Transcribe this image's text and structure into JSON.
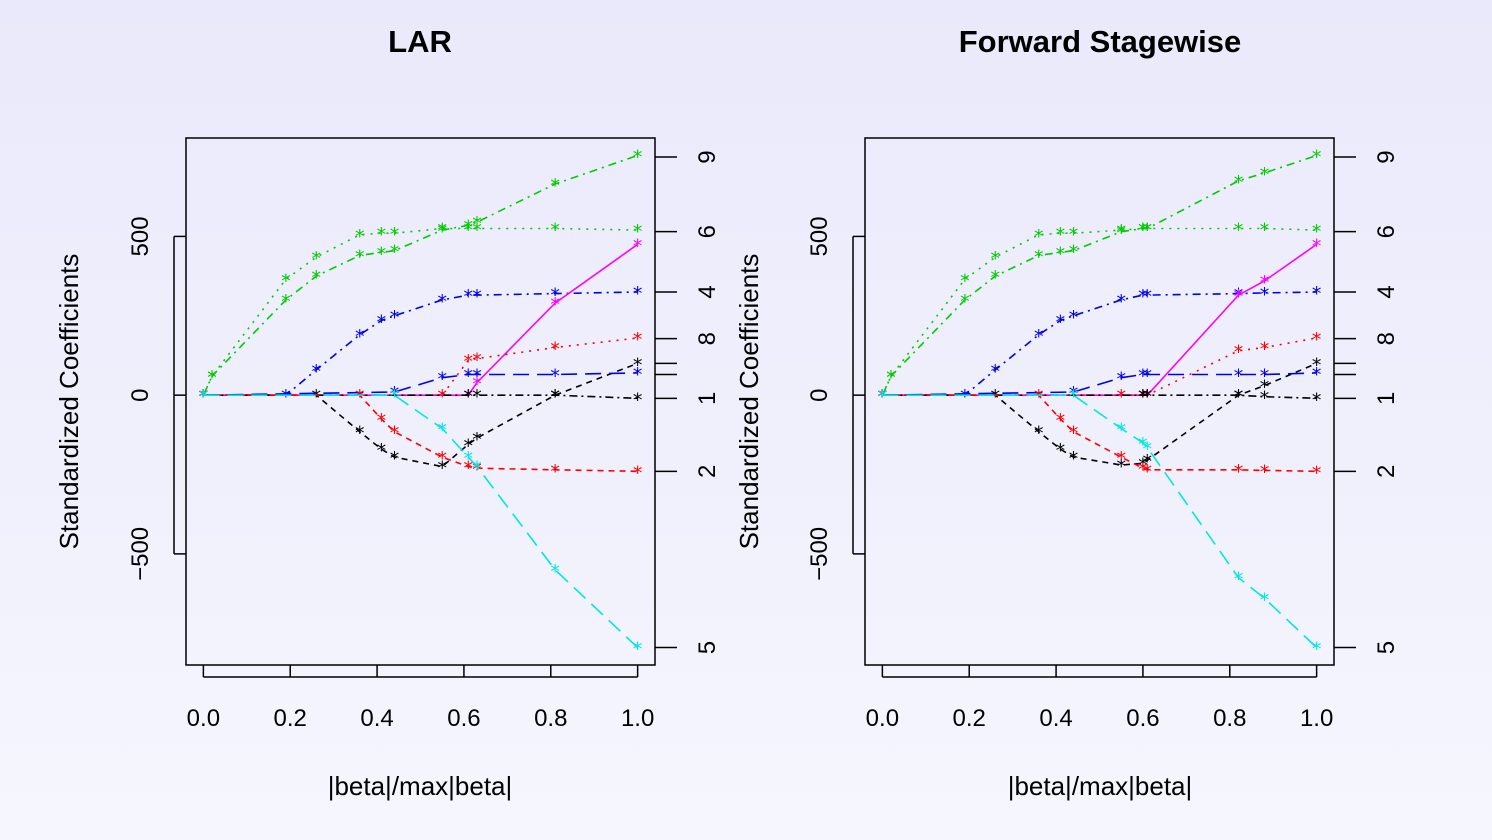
{
  "chart_data": [
    {
      "type": "line",
      "title": "LAR",
      "xlabel": "|beta|/max|beta|",
      "ylabel": "Standardized Coefficients",
      "xlim": [
        -0.04,
        1.04
      ],
      "ylim": [
        -850,
        810
      ],
      "x_ticks": [
        0.0,
        0.2,
        0.4,
        0.6,
        0.8,
        1.0
      ],
      "x_tick_labels": [
        "0.0",
        "0.2",
        "0.4",
        "0.6",
        "0.8",
        "1.0"
      ],
      "y_ticks": [
        -500,
        0,
        500
      ],
      "y_tick_labels": [
        "−500",
        "0",
        "500"
      ],
      "right_axis_labels": [
        {
          "y": 750,
          "label": "9"
        },
        {
          "y": 515,
          "label": "6"
        },
        {
          "y": 325,
          "label": "4"
        },
        {
          "y": 178,
          "label": "8"
        },
        {
          "y": 100,
          "label": ""
        },
        {
          "y": 65,
          "label": ""
        },
        {
          "y": -10,
          "label": "1"
        },
        {
          "y": -240,
          "label": "2"
        },
        {
          "y": -795,
          "label": "5"
        }
      ],
      "grid": false,
      "series": [
        {
          "color": "#00cc00",
          "dash": "8,5,2,5",
          "x": [
            0.0,
            0.02,
            0.19,
            0.26,
            0.36,
            0.41,
            0.44,
            0.55,
            0.61,
            0.63,
            0.81,
            1.0
          ],
          "y": [
            0,
            60,
            300,
            375,
            440,
            450,
            455,
            520,
            535,
            545,
            665,
            755
          ]
        },
        {
          "color": "#00cc00",
          "dash": "2,6",
          "x": [
            0.0,
            0.02,
            0.19,
            0.26,
            0.36,
            0.41,
            0.44,
            0.55,
            0.61,
            0.63,
            0.81,
            1.0
          ],
          "y": [
            0,
            60,
            365,
            435,
            505,
            510,
            510,
            525,
            525,
            525,
            525,
            520
          ]
        },
        {
          "color": "#0000ee",
          "dash": "8,5,2,5",
          "x": [
            0.0,
            0.19,
            0.26,
            0.36,
            0.41,
            0.44,
            0.55,
            0.61,
            0.63,
            0.81,
            1.0
          ],
          "y": [
            0,
            0,
            80,
            190,
            235,
            250,
            300,
            315,
            315,
            320,
            325
          ]
        },
        {
          "color": "#ff00ff",
          "dash": "",
          "x": [
            0.0,
            0.61,
            0.63,
            0.81,
            1.0
          ],
          "y": [
            0,
            0,
            40,
            290,
            475
          ]
        },
        {
          "color": "#ff0000",
          "dash": "2,6",
          "x": [
            0.0,
            0.55,
            0.61,
            0.63,
            0.81,
            1.0
          ],
          "y": [
            0,
            0,
            110,
            115,
            150,
            180
          ]
        },
        {
          "color": "#000000",
          "dash": "6,5",
          "x": [
            0.0,
            0.26,
            0.36,
            0.41,
            0.44,
            0.55,
            0.61,
            0.63,
            0.81,
            1.0
          ],
          "y": [
            0,
            0,
            -115,
            -170,
            -195,
            -225,
            -155,
            -135,
            0,
            100
          ]
        },
        {
          "color": "#0000ee",
          "dash": "16,8",
          "x": [
            0.0,
            0.44,
            0.55,
            0.61,
            0.63,
            0.81,
            1.0
          ],
          "y": [
            0,
            10,
            55,
            65,
            65,
            65,
            70
          ]
        },
        {
          "color": "#000000",
          "dash": "2,4,8,4",
          "x": [
            0.0,
            0.61,
            0.63,
            0.81,
            1.0
          ],
          "y": [
            0,
            0,
            0,
            0,
            -10
          ]
        },
        {
          "color": "#ff0000",
          "dash": "6,5",
          "x": [
            0.0,
            0.36,
            0.41,
            0.44,
            0.55,
            0.61,
            0.63,
            0.81,
            1.0
          ],
          "y": [
            0,
            0,
            -75,
            -115,
            -195,
            -225,
            -230,
            -235,
            -240
          ]
        },
        {
          "color": "#00e5e5",
          "dash": "16,8",
          "x": [
            0.0,
            0.44,
            0.55,
            0.61,
            0.63,
            0.81,
            1.0
          ],
          "y": [
            0,
            0,
            -105,
            -195,
            -225,
            -550,
            -795
          ]
        }
      ]
    },
    {
      "type": "line",
      "title": "Forward Stagewise",
      "xlabel": "|beta|/max|beta|",
      "ylabel": "Standardized Coefficients",
      "xlim": [
        -0.04,
        1.04
      ],
      "ylim": [
        -850,
        810
      ],
      "x_ticks": [
        0.0,
        0.2,
        0.4,
        0.6,
        0.8,
        1.0
      ],
      "x_tick_labels": [
        "0.0",
        "0.2",
        "0.4",
        "0.6",
        "0.8",
        "1.0"
      ],
      "y_ticks": [
        -500,
        0,
        500
      ],
      "y_tick_labels": [
        "−500",
        "0",
        "500"
      ],
      "right_axis_labels": [
        {
          "y": 750,
          "label": "9"
        },
        {
          "y": 515,
          "label": "6"
        },
        {
          "y": 325,
          "label": "4"
        },
        {
          "y": 178,
          "label": "8"
        },
        {
          "y": 100,
          "label": ""
        },
        {
          "y": 65,
          "label": ""
        },
        {
          "y": -10,
          "label": "1"
        },
        {
          "y": -240,
          "label": "2"
        },
        {
          "y": -795,
          "label": "5"
        }
      ],
      "grid": false,
      "series": [
        {
          "color": "#00cc00",
          "dash": "8,5,2,5",
          "x": [
            0.0,
            0.02,
            0.19,
            0.26,
            0.36,
            0.41,
            0.44,
            0.55,
            0.6,
            0.61,
            0.82,
            0.88,
            1.0
          ],
          "y": [
            0,
            60,
            300,
            375,
            440,
            450,
            455,
            515,
            525,
            525,
            675,
            700,
            755
          ]
        },
        {
          "color": "#00cc00",
          "dash": "2,6",
          "x": [
            0.0,
            0.02,
            0.19,
            0.26,
            0.36,
            0.41,
            0.44,
            0.55,
            0.6,
            0.61,
            0.82,
            0.88,
            1.0
          ],
          "y": [
            0,
            60,
            365,
            435,
            505,
            510,
            510,
            520,
            525,
            525,
            525,
            525,
            520
          ]
        },
        {
          "color": "#0000ee",
          "dash": "8,5,2,5",
          "x": [
            0.0,
            0.19,
            0.26,
            0.36,
            0.41,
            0.44,
            0.55,
            0.6,
            0.61,
            0.82,
            0.88,
            1.0
          ],
          "y": [
            0,
            0,
            80,
            190,
            235,
            250,
            300,
            315,
            315,
            320,
            322,
            325
          ]
        },
        {
          "color": "#ff00ff",
          "dash": "",
          "x": [
            0.0,
            0.6,
            0.61,
            0.82,
            0.88,
            1.0
          ],
          "y": [
            0,
            0,
            0,
            315,
            360,
            475
          ]
        },
        {
          "color": "#ff0000",
          "dash": "2,6",
          "x": [
            0.0,
            0.55,
            0.6,
            0.61,
            0.82,
            0.88,
            1.0
          ],
          "y": [
            0,
            0,
            0,
            0,
            140,
            150,
            180
          ]
        },
        {
          "color": "#000000",
          "dash": "6,5",
          "x": [
            0.0,
            0.26,
            0.36,
            0.41,
            0.44,
            0.55,
            0.6,
            0.61,
            0.82,
            0.88,
            1.0
          ],
          "y": [
            0,
            0,
            -115,
            -170,
            -195,
            -220,
            -215,
            -205,
            0,
            30,
            100
          ]
        },
        {
          "color": "#0000ee",
          "dash": "16,8",
          "x": [
            0.0,
            0.44,
            0.55,
            0.6,
            0.61,
            0.82,
            0.88,
            1.0
          ],
          "y": [
            0,
            10,
            55,
            65,
            65,
            65,
            65,
            70
          ]
        },
        {
          "color": "#000000",
          "dash": "2,4,8,4",
          "x": [
            0.0,
            0.6,
            0.61,
            0.82,
            0.88,
            1.0
          ],
          "y": [
            0,
            0,
            0,
            0,
            -5,
            -10
          ]
        },
        {
          "color": "#ff0000",
          "dash": "6,5",
          "x": [
            0.0,
            0.36,
            0.41,
            0.44,
            0.55,
            0.6,
            0.61,
            0.82,
            0.88,
            1.0
          ],
          "y": [
            0,
            0,
            -75,
            -115,
            -195,
            -230,
            -235,
            -235,
            -237,
            -240
          ]
        },
        {
          "color": "#00e5e5",
          "dash": "16,8",
          "x": [
            0.0,
            0.44,
            0.55,
            0.6,
            0.61,
            0.82,
            0.88,
            1.0
          ],
          "y": [
            0,
            0,
            -105,
            -150,
            -165,
            -575,
            -640,
            -795
          ]
        }
      ]
    }
  ]
}
